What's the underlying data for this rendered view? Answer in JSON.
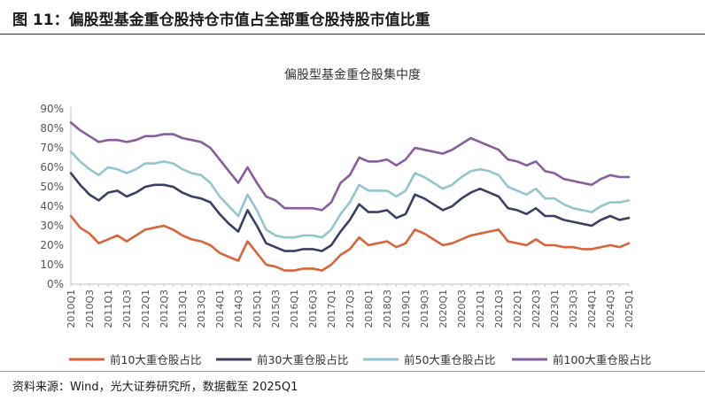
{
  "header": {
    "figure_title": "图 11：偏股型基金重仓股持仓市值占全部重仓股持股市值比重"
  },
  "footer": {
    "source": "资料来源：Wind，光大证券研究所，数据截至 2025Q1"
  },
  "chart_data": {
    "type": "line",
    "title": "偏股型基金重仓股集中度",
    "ylim": [
      0,
      0.9
    ],
    "yticks": [
      "0%",
      "10%",
      "20%",
      "30%",
      "40%",
      "50%",
      "60%",
      "70%",
      "80%",
      "90%"
    ],
    "grid": false,
    "legend_position": "bottom",
    "x_tick_labels": [
      "2010Q1",
      "2010Q3",
      "2011Q1",
      "2011Q3",
      "2012Q1",
      "2012Q3",
      "2013Q1",
      "2013Q3",
      "2014Q1",
      "2014Q3",
      "2015Q1",
      "2015Q3",
      "2016Q1",
      "2016Q3",
      "2017Q1",
      "2017Q3",
      "2018Q1",
      "2018Q3",
      "2019Q1",
      "2019Q3",
      "2020Q1",
      "2020Q3",
      "2021Q1",
      "2021Q3",
      "2022Q1",
      "2022Q3",
      "2023Q1",
      "2023Q3",
      "2024Q1",
      "2024Q3",
      "2025Q1"
    ],
    "x": [
      "2010Q1",
      "2010Q2",
      "2010Q3",
      "2010Q4",
      "2011Q1",
      "2011Q2",
      "2011Q3",
      "2011Q4",
      "2012Q1",
      "2012Q2",
      "2012Q3",
      "2012Q4",
      "2013Q1",
      "2013Q2",
      "2013Q3",
      "2013Q4",
      "2014Q1",
      "2014Q2",
      "2014Q3",
      "2014Q4",
      "2015Q1",
      "2015Q2",
      "2015Q3",
      "2015Q4",
      "2016Q1",
      "2016Q2",
      "2016Q3",
      "2016Q4",
      "2017Q1",
      "2017Q2",
      "2017Q3",
      "2017Q4",
      "2018Q1",
      "2018Q2",
      "2018Q3",
      "2018Q4",
      "2019Q1",
      "2019Q2",
      "2019Q3",
      "2019Q4",
      "2020Q1",
      "2020Q2",
      "2020Q3",
      "2020Q4",
      "2021Q1",
      "2021Q2",
      "2021Q3",
      "2021Q4",
      "2022Q1",
      "2022Q2",
      "2022Q3",
      "2022Q4",
      "2023Q1",
      "2023Q2",
      "2023Q3",
      "2023Q4",
      "2024Q1",
      "2024Q2",
      "2024Q3",
      "2024Q4",
      "2025Q1"
    ],
    "series": [
      {
        "name": "前10大重仓股占比",
        "color": "#d9643a",
        "values": [
          0.35,
          0.29,
          0.26,
          0.21,
          0.23,
          0.25,
          0.22,
          0.25,
          0.28,
          0.29,
          0.3,
          0.28,
          0.25,
          0.23,
          0.22,
          0.2,
          0.16,
          0.14,
          0.12,
          0.22,
          0.16,
          0.1,
          0.09,
          0.07,
          0.07,
          0.08,
          0.08,
          0.07,
          0.1,
          0.15,
          0.18,
          0.24,
          0.2,
          0.21,
          0.22,
          0.19,
          0.21,
          0.28,
          0.26,
          0.23,
          0.2,
          0.21,
          0.23,
          0.25,
          0.26,
          0.27,
          0.28,
          0.22,
          0.21,
          0.2,
          0.23,
          0.2,
          0.2,
          0.19,
          0.19,
          0.18,
          0.18,
          0.19,
          0.2,
          0.19,
          0.21
        ]
      },
      {
        "name": "前30大重仓股占比",
        "color": "#3b3f66",
        "values": [
          0.57,
          0.51,
          0.46,
          0.43,
          0.47,
          0.48,
          0.45,
          0.47,
          0.5,
          0.51,
          0.51,
          0.5,
          0.47,
          0.45,
          0.44,
          0.42,
          0.36,
          0.31,
          0.27,
          0.38,
          0.3,
          0.21,
          0.19,
          0.17,
          0.17,
          0.18,
          0.18,
          0.17,
          0.2,
          0.27,
          0.33,
          0.41,
          0.37,
          0.37,
          0.38,
          0.34,
          0.36,
          0.46,
          0.44,
          0.41,
          0.38,
          0.4,
          0.44,
          0.47,
          0.49,
          0.47,
          0.45,
          0.39,
          0.38,
          0.36,
          0.39,
          0.35,
          0.35,
          0.33,
          0.32,
          0.31,
          0.3,
          0.33,
          0.35,
          0.33,
          0.34
        ]
      },
      {
        "name": "前50大重仓股占比",
        "color": "#93c5cf",
        "values": [
          0.68,
          0.63,
          0.59,
          0.56,
          0.6,
          0.59,
          0.57,
          0.59,
          0.62,
          0.62,
          0.63,
          0.62,
          0.59,
          0.57,
          0.56,
          0.52,
          0.45,
          0.4,
          0.35,
          0.46,
          0.38,
          0.28,
          0.25,
          0.24,
          0.24,
          0.25,
          0.25,
          0.24,
          0.28,
          0.36,
          0.42,
          0.51,
          0.48,
          0.48,
          0.48,
          0.45,
          0.48,
          0.57,
          0.55,
          0.52,
          0.49,
          0.51,
          0.55,
          0.58,
          0.59,
          0.58,
          0.56,
          0.5,
          0.48,
          0.46,
          0.49,
          0.44,
          0.44,
          0.41,
          0.39,
          0.38,
          0.37,
          0.4,
          0.42,
          0.42,
          0.43
        ]
      },
      {
        "name": "前100大重仓股占比",
        "color": "#8a5b9e",
        "values": [
          0.83,
          0.79,
          0.76,
          0.73,
          0.74,
          0.74,
          0.73,
          0.74,
          0.76,
          0.76,
          0.77,
          0.77,
          0.75,
          0.74,
          0.73,
          0.7,
          0.64,
          0.58,
          0.52,
          0.6,
          0.52,
          0.45,
          0.43,
          0.39,
          0.39,
          0.39,
          0.39,
          0.38,
          0.42,
          0.52,
          0.56,
          0.65,
          0.63,
          0.63,
          0.64,
          0.61,
          0.64,
          0.7,
          0.69,
          0.68,
          0.67,
          0.69,
          0.72,
          0.75,
          0.73,
          0.71,
          0.69,
          0.64,
          0.63,
          0.61,
          0.63,
          0.58,
          0.57,
          0.54,
          0.53,
          0.52,
          0.51,
          0.54,
          0.56,
          0.55,
          0.55
        ]
      }
    ]
  }
}
